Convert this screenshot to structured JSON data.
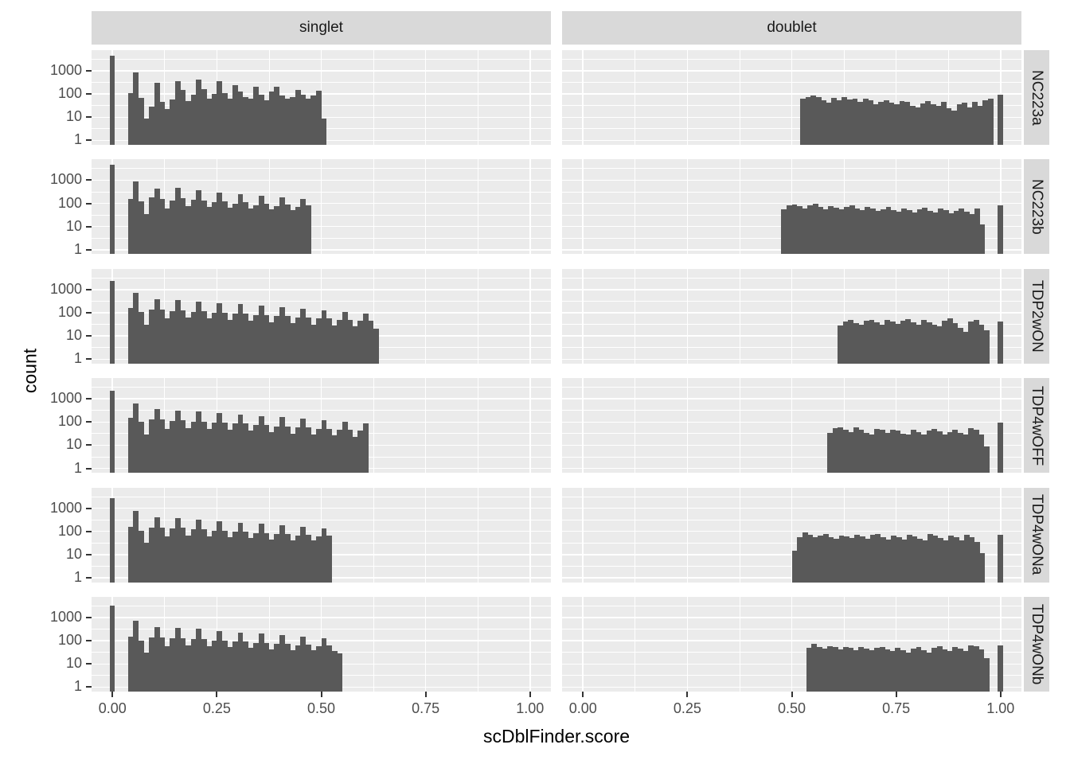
{
  "figure": {
    "xlabel": "scDblFinder.score",
    "ylabel": "count",
    "col_facets": [
      "singlet",
      "doublet"
    ],
    "row_facets": [
      "NC223a",
      "NC223b",
      "TDP2wON",
      "TDP4wOFF",
      "TDP4wONa",
      "TDP4wONb"
    ],
    "x_tick_labels": [
      "0.00",
      "0.25",
      "0.50",
      "0.75",
      "1.00"
    ],
    "y_tick_labels": [
      "1000",
      "100",
      "10",
      "1"
    ],
    "colors": {
      "bar": "#595959",
      "panel_bg": "#EBEBEB",
      "strip_bg": "#D9D9D9",
      "grid": "#FFFFFF",
      "axis_text": "#4D4D4D",
      "strip_text": "#1A1A1A",
      "tick_mark": "#333333"
    }
  },
  "chart_data": {
    "type": "bar",
    "subtype": "faceted-histogram",
    "title": "",
    "xlabel": "scDblFinder.score",
    "ylabel": "count",
    "facet_cols": [
      "singlet",
      "doublet"
    ],
    "facet_rows": [
      "NC223a",
      "NC223b",
      "TDP2wON",
      "TDP4wOFF",
      "TDP4wONa",
      "TDP4wONb"
    ],
    "x_ticks": [
      0,
      0.25,
      0.5,
      0.75,
      1.0
    ],
    "y_ticks": [
      1,
      10,
      100,
      1000
    ],
    "y_scale": "log10",
    "x_range_expanded": [
      -0.05,
      1.05
    ],
    "y_log_range_expanded": [
      -0.19,
      3.89
    ],
    "grid": true,
    "legend": "none",
    "bin_width": 0.0125,
    "panels": [
      {
        "row": "NC223a",
        "col": "singlet",
        "spike": {
          "x": 0.0,
          "count": 4500
        },
        "bars_start": 0.0375,
        "counts": [
          110,
          820,
          70,
          9,
          28,
          300,
          45,
          22,
          60,
          350,
          150,
          48,
          95,
          420,
          160,
          65,
          105,
          360,
          110,
          65,
          240,
          130,
          75,
          62,
          210,
          95,
          55,
          125,
          200,
          85,
          62,
          75,
          155,
          95,
          65,
          85,
          135,
          9
        ]
      },
      {
        "row": "NC223a",
        "col": "doublet",
        "spike": {
          "x": 1.0,
          "count": 95
        },
        "bars_start": 0.52,
        "counts": [
          62,
          75,
          85,
          72,
          55,
          42,
          68,
          52,
          72,
          58,
          62,
          45,
          65,
          55,
          35,
          45,
          55,
          42,
          35,
          50,
          45,
          30,
          26,
          40,
          50,
          35,
          30,
          45,
          25,
          20,
          35,
          42,
          26,
          45,
          30,
          55,
          65
        ]
      },
      {
        "row": "NC223b",
        "col": "singlet",
        "spike": {
          "x": 0.0,
          "count": 4500
        },
        "bars_start": 0.0375,
        "counts": [
          160,
          900,
          120,
          35,
          180,
          420,
          160,
          60,
          130,
          450,
          170,
          75,
          140,
          380,
          130,
          70,
          110,
          300,
          120,
          65,
          95,
          250,
          110,
          60,
          85,
          220,
          100,
          55,
          75,
          180,
          90,
          50,
          70,
          150,
          80
        ]
      },
      {
        "row": "NC223b",
        "col": "doublet",
        "spike": {
          "x": 1.0,
          "count": 85
        },
        "bars_start": 0.475,
        "counts": [
          55,
          80,
          90,
          75,
          60,
          85,
          95,
          70,
          55,
          75,
          65,
          55,
          70,
          80,
          60,
          50,
          72,
          62,
          48,
          55,
          68,
          52,
          45,
          60,
          50,
          40,
          55,
          65,
          48,
          40,
          58,
          50,
          38,
          48,
          60,
          45,
          35,
          60,
          12
        ]
      },
      {
        "row": "TDP2wON",
        "col": "singlet",
        "spike": {
          "x": 0.0,
          "count": 2300
        },
        "bars_start": 0.0375,
        "counts": [
          160,
          700,
          110,
          30,
          140,
          380,
          140,
          55,
          120,
          350,
          130,
          60,
          110,
          300,
          115,
          55,
          100,
          260,
          100,
          50,
          90,
          230,
          90,
          45,
          80,
          200,
          80,
          40,
          70,
          170,
          70,
          35,
          60,
          150,
          60,
          30,
          55,
          130,
          55,
          28,
          50,
          110,
          50,
          25,
          45,
          95,
          45,
          20
        ]
      },
      {
        "row": "TDP2wON",
        "col": "doublet",
        "spike": {
          "x": 1.0,
          "count": 42
        },
        "bars_start": 0.61,
        "counts": [
          28,
          42,
          48,
          35,
          30,
          45,
          50,
          38,
          30,
          48,
          42,
          32,
          45,
          52,
          38,
          30,
          48,
          40,
          30,
          25,
          45,
          55,
          35,
          22,
          15,
          42,
          50,
          30,
          18
        ]
      },
      {
        "row": "TDP4wOFF",
        "col": "singlet",
        "spike": {
          "x": 0.0,
          "count": 2200
        },
        "bars_start": 0.0375,
        "counts": [
          150,
          650,
          100,
          28,
          130,
          350,
          130,
          50,
          110,
          320,
          120,
          55,
          100,
          280,
          105,
          50,
          95,
          240,
          95,
          45,
          85,
          210,
          85,
          42,
          75,
          185,
          75,
          38,
          65,
          160,
          65,
          32,
          58,
          140,
          58,
          28,
          52,
          120,
          52,
          26,
          48,
          105,
          48,
          22,
          42,
          90
        ]
      },
      {
        "row": "TDP4wOFF",
        "col": "doublet",
        "spike": {
          "x": 1.0,
          "count": 95
        },
        "bars_start": 0.585,
        "counts": [
          35,
          55,
          60,
          45,
          38,
          58,
          48,
          35,
          30,
          52,
          45,
          35,
          48,
          42,
          32,
          28,
          45,
          38,
          30,
          42,
          52,
          40,
          30,
          38,
          48,
          35,
          28,
          55,
          45,
          30,
          9
        ]
      },
      {
        "row": "TDP4wONa",
        "col": "singlet",
        "spike": {
          "x": 0.0,
          "count": 2800
        },
        "bars_start": 0.0375,
        "counts": [
          160,
          750,
          110,
          32,
          150,
          400,
          150,
          60,
          130,
          380,
          140,
          65,
          120,
          330,
          120,
          60,
          105,
          280,
          105,
          55,
          95,
          240,
          95,
          50,
          85,
          210,
          85,
          45,
          75,
          180,
          78,
          42,
          68,
          155,
          70,
          40,
          62,
          135,
          65
        ]
      },
      {
        "row": "TDP4wONa",
        "col": "doublet",
        "spike": {
          "x": 1.0,
          "count": 70
        },
        "bars_start": 0.5,
        "counts": [
          15,
          55,
          90,
          70,
          55,
          65,
          75,
          58,
          48,
          68,
          60,
          50,
          70,
          62,
          48,
          72,
          78,
          55,
          45,
          65,
          58,
          45,
          70,
          60,
          48,
          40,
          75,
          65,
          50,
          42,
          68,
          55,
          42,
          72,
          55,
          35,
          12
        ]
      },
      {
        "row": "TDP4wONb",
        "col": "singlet",
        "spike": {
          "x": 0.0,
          "count": 3200
        },
        "bars_start": 0.0375,
        "counts": [
          150,
          700,
          105,
          30,
          140,
          380,
          140,
          58,
          125,
          360,
          130,
          62,
          115,
          320,
          115,
          58,
          100,
          270,
          100,
          52,
          92,
          230,
          92,
          48,
          82,
          200,
          82,
          44,
          72,
          175,
          75,
          40,
          65,
          150,
          68,
          38,
          60,
          130,
          62,
          35,
          28
        ]
      },
      {
        "row": "TDP4wONb",
        "col": "doublet",
        "spike": {
          "x": 1.0,
          "count": 65
        },
        "bars_start": 0.535,
        "counts": [
          50,
          75,
          55,
          45,
          60,
          52,
          42,
          55,
          48,
          40,
          52,
          45,
          38,
          50,
          55,
          42,
          35,
          48,
          40,
          32,
          45,
          55,
          40,
          32,
          50,
          58,
          42,
          35,
          55,
          45,
          35,
          65,
          58,
          42,
          18
        ]
      }
    ]
  }
}
